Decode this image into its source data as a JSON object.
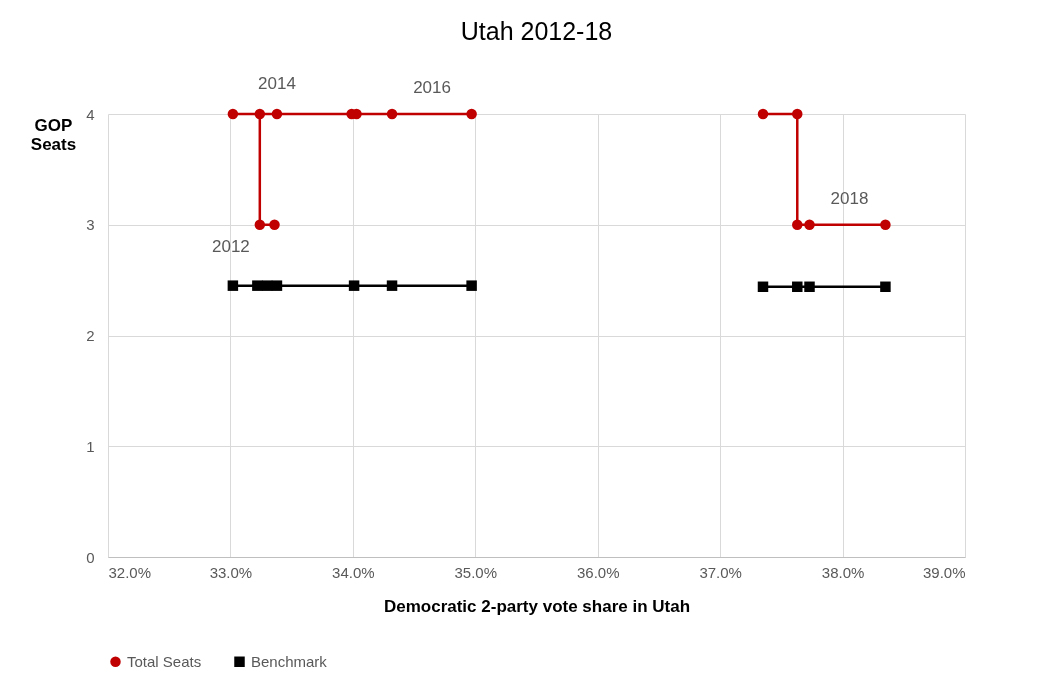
{
  "chart_data": {
    "type": "line",
    "title": "Utah 2012-18",
    "xlabel": "Democratic 2-party vote share in Utah",
    "ylabel": "GOP Seats",
    "x": [
      33.36,
      33.24,
      33.24,
      33.02,
      33.38,
      33.99,
      34.03,
      34.32,
      34.97,
      null,
      37.35,
      37.63,
      37.63,
      37.73,
      38.35
    ],
    "series": [
      {
        "name": "Total Seats",
        "color": "#c00000",
        "marker": "circle",
        "values": [
          3,
          3,
          4,
          4,
          4,
          4,
          4,
          4,
          4,
          null,
          4,
          4,
          3,
          3,
          3
        ]
      },
      {
        "name": "Benchmark",
        "color": "#000000",
        "marker": "square",
        "x": [
          33.02,
          33.22,
          33.3,
          33.38,
          34.01,
          34.32,
          34.97,
          null,
          37.35,
          37.63,
          37.73,
          38.35
        ],
        "values": [
          2.45,
          2.45,
          2.45,
          2.45,
          2.45,
          2.45,
          2.45,
          null,
          2.44,
          2.44,
          2.44,
          2.44
        ]
      }
    ],
    "xlim": [
      32,
      39
    ],
    "xticks": [
      {
        "value": 32,
        "label": "32.0%"
      },
      {
        "value": 33,
        "label": "33.0%"
      },
      {
        "value": 34,
        "label": "34.0%"
      },
      {
        "value": 35,
        "label": "35.0%"
      },
      {
        "value": 36,
        "label": "36.0%"
      },
      {
        "value": 37,
        "label": "37.0%"
      },
      {
        "value": 38,
        "label": "38.0%"
      },
      {
        "value": 39,
        "label": "39.0%"
      }
    ],
    "ylim": [
      0,
      4
    ],
    "yticks": [
      0,
      1,
      2,
      3,
      4
    ],
    "grid": true,
    "legend": "bottom",
    "annotations": [
      {
        "text": "2012",
        "x": 33.24,
        "y": 3
      },
      {
        "text": "2014",
        "x": 33.38,
        "y": 4
      },
      {
        "text": "2016",
        "x": 34.32,
        "y": 4
      },
      {
        "text": "2018",
        "x": 37.73,
        "y": 3
      }
    ]
  }
}
